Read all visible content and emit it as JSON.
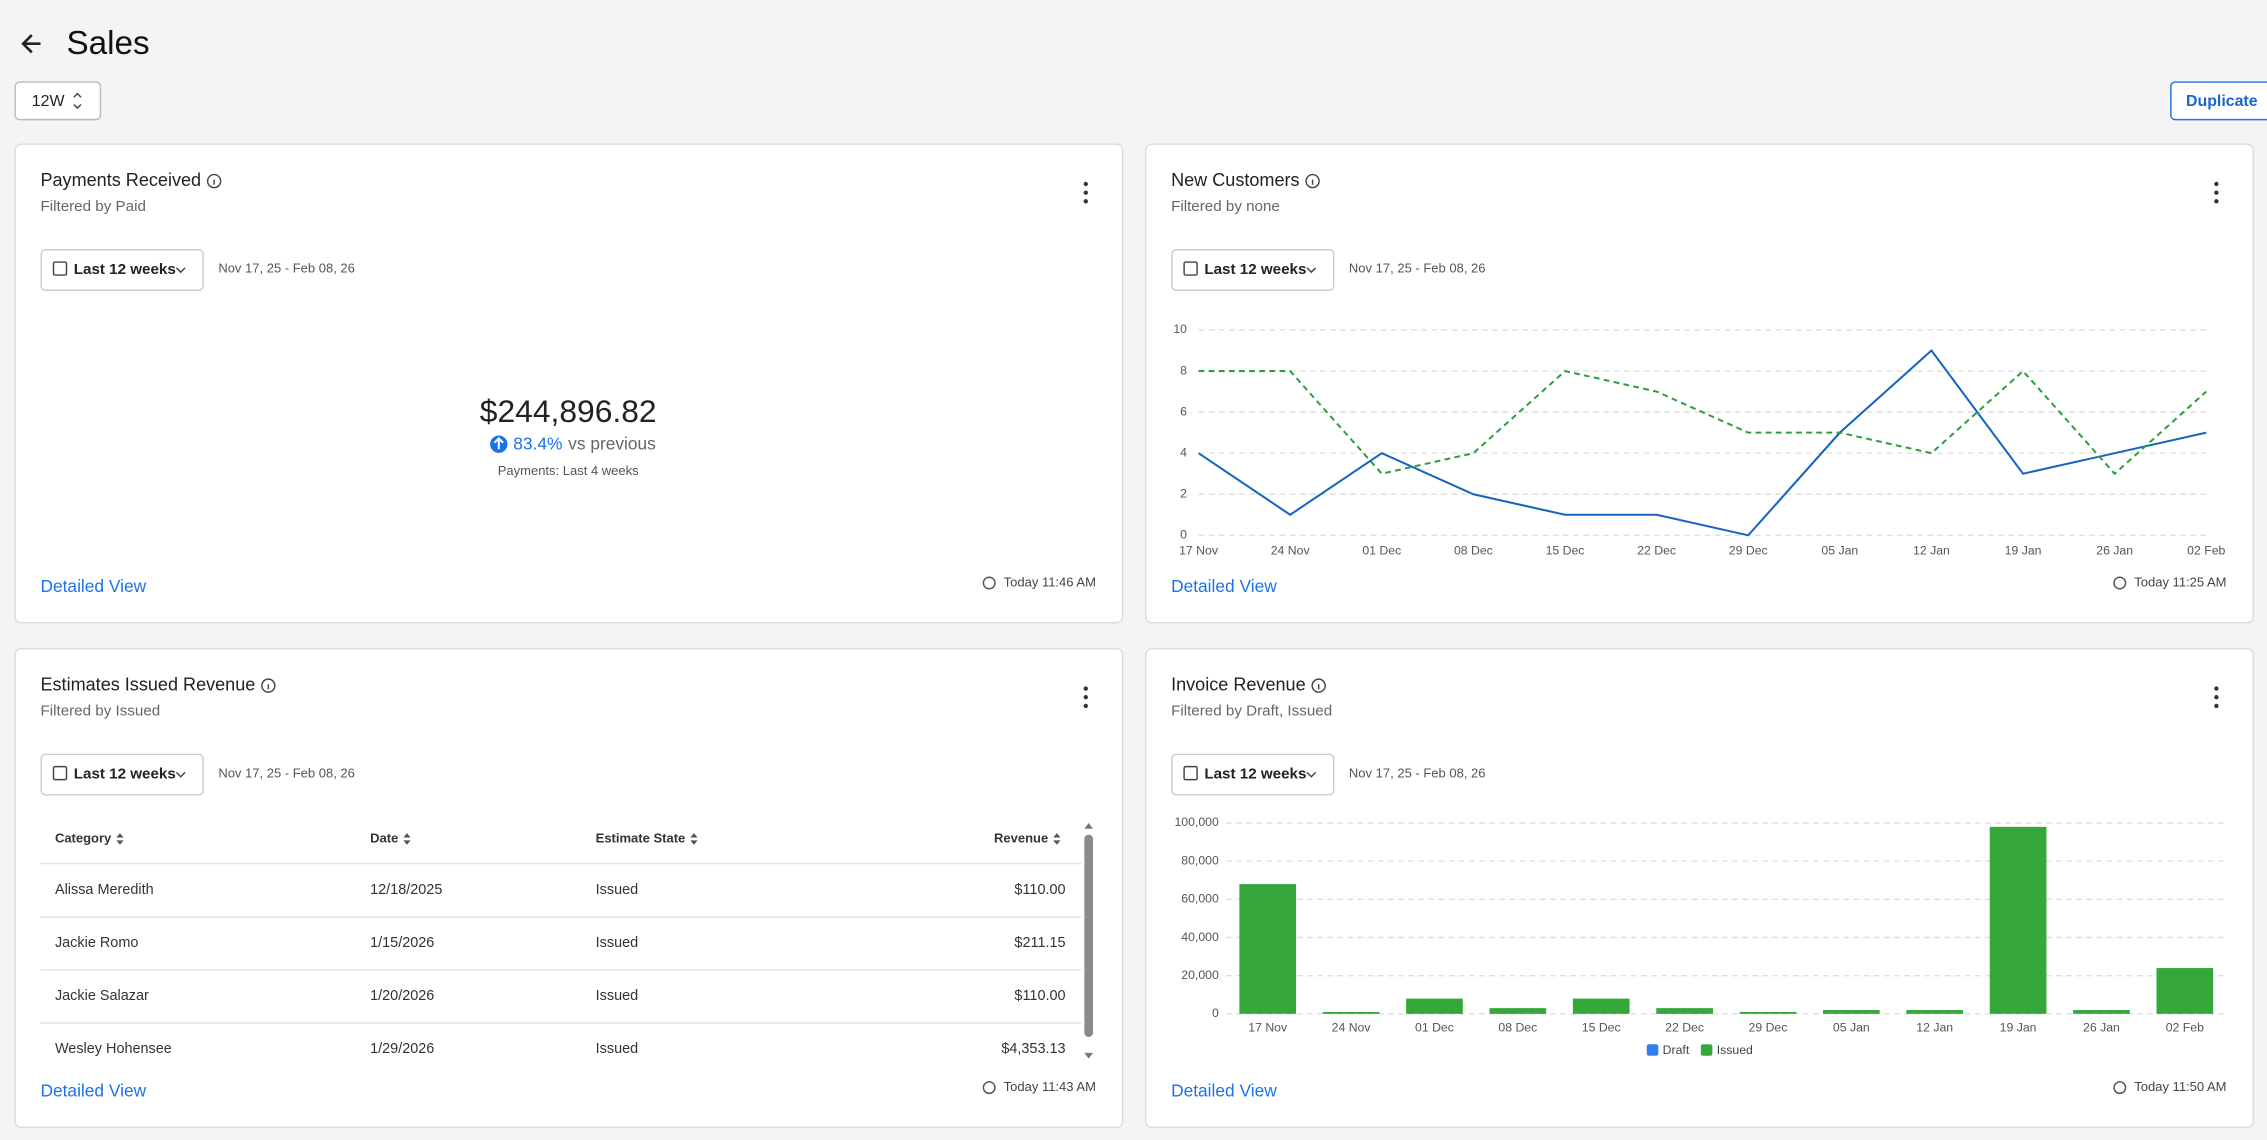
{
  "header": {
    "title": "Sales",
    "period": "12W",
    "action": "Duplicate"
  },
  "cards": [
    {
      "title": "Payments Received",
      "subtitle": "Filtered by Paid",
      "range": "Last 12 weeks",
      "dates": "Nov 17, 25 - Feb 08, 26",
      "link": "Detailed View",
      "updated": "Today 11:46 AM"
    },
    {
      "title": "New Customers",
      "subtitle": "Filtered by none",
      "range": "Last 12 weeks",
      "dates": "Nov 17, 25 - Feb 08, 26",
      "link": "Detailed View",
      "updated": "Today 11:25 AM"
    },
    {
      "title": "Estimates Issued Revenue",
      "subtitle": "Filtered by Issued",
      "range": "Last 12 weeks",
      "dates": "Nov 17, 25 - Feb 08, 26",
      "link": "Detailed View",
      "updated": "Today 11:43 AM"
    },
    {
      "title": "Invoice Revenue",
      "subtitle": "Filtered by Draft, Issued",
      "range": "Last 12 weeks",
      "dates": "Nov 17, 25 - Feb 08, 26",
      "link": "Detailed View",
      "updated": "Today 11:50 AM"
    }
  ],
  "payments": {
    "total": "$244,896.82",
    "change": "83.4%",
    "comparison": "vs previous",
    "note": "Payments: Last 4 weeks"
  },
  "table": {
    "columns": [
      "Category",
      "Date",
      "Estimate State",
      "Revenue"
    ],
    "rows": [
      [
        "Alissa Meredith",
        "12/18/2025",
        "Issued",
        "$110.00"
      ],
      [
        "Jackie Romo",
        "1/15/2026",
        "Issued",
        "$211.15"
      ],
      [
        "Jackie Salazar",
        "1/20/2026",
        "Issued",
        "$110.00"
      ],
      [
        "Wesley Hohensee",
        "1/29/2026",
        "Issued",
        "$4,353.13"
      ]
    ]
  },
  "chart_data": [
    {
      "type": "line",
      "categories": [
        "17 Nov",
        "24 Nov",
        "01 Dec",
        "08 Dec",
        "15 Dec",
        "22 Dec",
        "29 Dec",
        "05 Jan",
        "12 Jan",
        "19 Jan",
        "26 Jan",
        "02 Feb"
      ],
      "series": [
        {
          "color": "#1565c0",
          "dash": false,
          "values": [
            4,
            1,
            4,
            2,
            1,
            1,
            0,
            5,
            9,
            3,
            4,
            5
          ]
        },
        {
          "color": "#2e9e3e",
          "dash": true,
          "values": [
            8,
            8,
            3,
            4,
            8,
            7,
            5,
            5,
            4,
            8,
            3,
            7
          ]
        }
      ],
      "ylim": [
        0,
        10
      ],
      "yticks": [
        0,
        2,
        4,
        6,
        8,
        10
      ],
      "grid": true
    },
    {
      "type": "bar",
      "categories": [
        "17 Nov",
        "24 Nov",
        "01 Dec",
        "08 Dec",
        "15 Dec",
        "22 Dec",
        "29 Dec",
        "05 Jan",
        "12 Jan",
        "19 Jan",
        "26 Jan",
        "02 Feb"
      ],
      "series": [
        {
          "name": "Draft",
          "color": "#2f80ed",
          "values": [
            0,
            0,
            0,
            0,
            0,
            0,
            0,
            0,
            0,
            0,
            0,
            0
          ]
        },
        {
          "name": "Issued",
          "color": "#36a73a",
          "values": [
            68000,
            1000,
            8000,
            3000,
            8000,
            3000,
            1000,
            2000,
            2000,
            98000,
            2000,
            24000
          ]
        }
      ],
      "stacked": true,
      "ylim": [
        0,
        100000
      ],
      "yticks": [
        0,
        {
          "value": 20000,
          "label": "20,000"
        },
        {
          "value": 40000,
          "label": "40,000"
        },
        {
          "value": 60000,
          "label": "60,000"
        },
        {
          "value": 80000,
          "label": "80,000"
        },
        {
          "value": 100000,
          "label": "100,000"
        }
      ],
      "grid": true,
      "legend": "bottom"
    }
  ]
}
